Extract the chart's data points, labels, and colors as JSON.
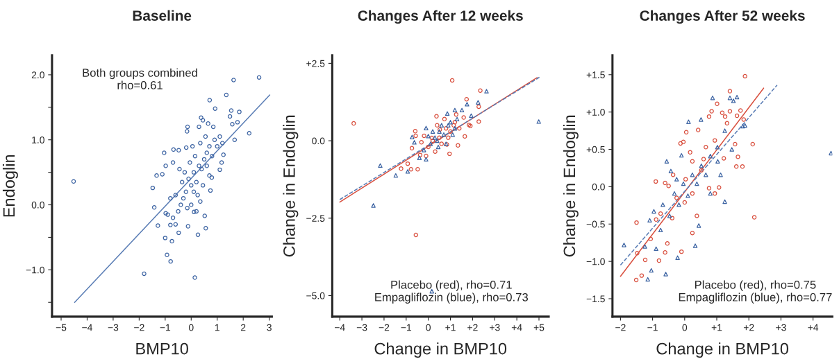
{
  "chart_data": [
    {
      "type": "scatter",
      "title": "Baseline",
      "xlabel": "BMP10",
      "ylabel": "Endoglin",
      "annotations": [
        "Both groups combined",
        "rho=0.61"
      ],
      "xlim": [
        -5.35,
        3.1
      ],
      "ylim": [
        -1.72,
        2.3
      ],
      "xticks": [
        {
          "value": -5,
          "label": "−5"
        },
        {
          "value": -4,
          "label": "−4"
        },
        {
          "value": -3,
          "label": "−3"
        },
        {
          "value": -2,
          "label": "−2"
        },
        {
          "value": -1,
          "label": "−1"
        },
        0,
        1,
        2,
        3
      ],
      "yticks": [
        {
          "value": -1.5,
          "label": null
        },
        {
          "value": -1.0,
          "label": "−1.0"
        },
        {
          "value": -0.5,
          "label": null
        },
        {
          "value": 0.0,
          "label": "0.0"
        },
        {
          "value": 0.5,
          "label": null
        },
        {
          "value": 1.0,
          "label": "1.0"
        },
        {
          "value": 1.5,
          "label": null
        },
        {
          "value": 2.0,
          "label": "2.0"
        }
      ],
      "grid": false,
      "legend": false,
      "series": [
        {
          "type": "scatter",
          "marker": "circle",
          "color": "#3d64a3",
          "x": [
            -4.52,
            2.61,
            1.63,
            1.35,
            0.71,
            0.92,
            -1.81,
            0.14,
            -0.79,
            -0.93,
            -0.74,
            -1.0,
            0.26,
            0.56,
            0.52,
            -1.28,
            -1.42,
            -1.48,
            -1.33,
            -1.04,
            2.23,
            1.67,
            1.85,
            1.54,
            1.78,
            1.58,
            1.49,
            0.38,
            -0.14,
            -0.16,
            -0.19,
            -0.68,
            -0.48,
            1.24,
            1.17,
            1.1,
            0.74,
            0.79,
            -0.98,
            -0.8,
            -0.48,
            -0.12,
            0.11,
            -0.7,
            -1.11,
            -0.98,
            0,
            0.1,
            -0.2,
            0.3,
            -0.3,
            0.2,
            0.4,
            -0.1,
            0.5,
            -0.4,
            0.6,
            -0.5,
            0.7,
            0.8,
            -0.6,
            0.0,
            0.15,
            0.35,
            -0.25,
            0.45,
            0.55,
            -0.35,
            0.25,
            -0.15,
            0.05,
            0.9,
            1.0,
            1.1,
            -0.7,
            -0.8,
            0.3,
            0.45,
            0.65,
            0.85,
            -0.05,
            0.7,
            -0.45,
            0.2,
            -0.6,
            0.35,
            -0.9,
            1.2,
            0.6,
            0.1
          ],
          "values": [
            0.36,
            1.96,
            1.92,
            1.69,
            1.61,
            1.48,
            -1.06,
            -1.12,
            -0.87,
            -0.77,
            -0.56,
            -0.51,
            -0.46,
            -0.36,
            -0.17,
            -0.32,
            -0.04,
            0.26,
            0.45,
            0.8,
            1.1,
            1.0,
            1.43,
            1.45,
            1.27,
            1.24,
            1.36,
            1.34,
            1.2,
            1.13,
            0.88,
            0.85,
            0.84,
            0.77,
            0.65,
            0.54,
            0.22,
            0.42,
            -0.13,
            -0.31,
            -0.43,
            -0.33,
            -0.11,
            0.65,
            0.47,
            0.6,
            0.3,
            0.5,
            0.2,
            0.6,
            0.1,
            0.35,
            0.55,
            0.4,
            0.7,
            0.0,
            0.8,
            -0.1,
            0.9,
            0.75,
            0.15,
            0.0,
            0.75,
            0.95,
            0.5,
            0.3,
            1.05,
            0.35,
            0.15,
            -0.05,
            0.9,
            1.0,
            0.9,
            1.05,
            -0.2,
            0.1,
            1.2,
            1.3,
            1.25,
            1.2,
            0.65,
            0.45,
            0.55,
            -0.1,
            -0.3,
            0.05,
            -0.15,
            0.95,
            0.6,
            0.2
          ]
        },
        {
          "type": "line",
          "line_style": "solid",
          "color": "#5a7db5",
          "x": [
            -4.48,
            3.02
          ],
          "values": [
            -1.5,
            1.69
          ]
        }
      ]
    },
    {
      "type": "scatter",
      "title": "Changes After 12 weeks",
      "xlabel": "Change in BMP10",
      "ylabel": "Change in Endoglin",
      "annotations": [
        "Placebo (red), rho=0.71",
        "Empagliflozin (blue), rho=0.73"
      ],
      "xlim": [
        -4.34,
        5.44
      ],
      "ylim": [
        -5.68,
        2.76
      ],
      "xticks": [
        {
          "value": -4,
          "label": "−4"
        },
        {
          "value": -3,
          "label": "−3"
        },
        {
          "value": -2,
          "label": "−2"
        },
        {
          "value": -1,
          "label": "−1"
        },
        0,
        {
          "value": 1,
          "label": "+1"
        },
        {
          "value": 2,
          "label": "+2"
        },
        {
          "value": 3,
          "label": "+3"
        },
        {
          "value": 4,
          "label": "+4"
        },
        {
          "value": 5,
          "label": "+5"
        }
      ],
      "yticks": [
        {
          "value": -5.0,
          "label": "−5.0"
        },
        {
          "value": -2.5,
          "label": "−2.5"
        },
        {
          "value": 0.0,
          "label": "0.0"
        },
        {
          "value": 2.5,
          "label": "+2.5"
        }
      ],
      "grid": false,
      "legend": false,
      "series": [
        {
          "type": "scatter",
          "marker": "circle",
          "color": "#d9503f",
          "x": [
            -3.37,
            1.08,
            2.35,
            1.73,
            2.28,
            2.28,
            -0.56,
            0.37,
            -0.59,
            -0.57,
            -1.23,
            -0.93,
            -0.78,
            -0.48,
            -0.74,
            0.96,
            1.34,
            1.65,
            1.84,
            1.9,
            1.6,
            -0.19,
            -0.31,
            0.73,
            1.15,
            0.52,
            0.84,
            -0.1,
            -0.37,
            1.26,
            0.16,
            0.31,
            0.5,
            0.8,
            1.0,
            0.2,
            0.6,
            1.2,
            0.0,
            0.4,
            0.9,
            1.4
          ],
          "values": [
            0.56,
            1.95,
            1.62,
            1.34,
            1.1,
            0.62,
            -3.04,
            0.79,
            0.31,
            0.16,
            -0.9,
            -0.74,
            -0.92,
            -0.92,
            -0.24,
            -0.42,
            -0.15,
            0.14,
            0.51,
            0.48,
            0.75,
            0.16,
            -0.05,
            0.7,
            0.5,
            0.36,
            -0.12,
            -0.49,
            -0.46,
            0.85,
            0.09,
            -0.35,
            0.1,
            0.4,
            0.3,
            0.0,
            -0.1,
            0.6,
            -0.2,
            0.5,
            0.1,
            0.4
          ]
        },
        {
          "type": "scatter",
          "marker": "triangle",
          "color": "#3d64a3",
          "x": [
            -2.17,
            -1.47,
            -2.48,
            4.99,
            2.63,
            2.25,
            1.75,
            1.94,
            0.16,
            -0.93,
            -0.73,
            -0.63,
            -0.1,
            1.2,
            1.52,
            0.86,
            0.3,
            0.5,
            0.7,
            0.9,
            0.1,
            0.4,
            0.6,
            1.0,
            1.2,
            0.2,
            0.8,
            1.1,
            -0.2,
            0.0,
            1.3,
            0.45,
            -0.4,
            -0.1
          ],
          "values": [
            -0.8,
            -1.12,
            -2.09,
            0.62,
            1.6,
            1.24,
            1.18,
            0.81,
            -4.86,
            -0.99,
            0.12,
            -0.05,
            0.41,
            0.99,
            0.99,
            0.88,
            0.1,
            0.3,
            0.2,
            0.5,
            -0.1,
            0.0,
            0.5,
            0.6,
            0.4,
            0.3,
            -0.1,
            0.2,
            -0.3,
            0.15,
            0.7,
            -0.2,
            -0.55,
            -0.6
          ]
        },
        {
          "type": "line",
          "line_style": "solid",
          "color": "#d9503f",
          "x": [
            -4.0,
            4.92
          ],
          "values": [
            -1.98,
            2.04
          ]
        },
        {
          "type": "line",
          "line_style": "dashed",
          "color": "#5a7db5",
          "x": [
            -4.0,
            5.02
          ],
          "values": [
            -1.9,
            2.05
          ]
        }
      ]
    },
    {
      "type": "scatter",
      "title": "Changes After 52 weeks",
      "xlabel": "Change in BMP10",
      "ylabel": "Change in Endoglin",
      "annotations": [
        "Placebo (red), rho=0.75",
        "Empagliflozin (blue), rho=0.77"
      ],
      "xlim": [
        -2.25,
        4.6
      ],
      "ylim": [
        -1.74,
        1.76
      ],
      "xticks": [
        {
          "value": -2,
          "label": "−2"
        },
        {
          "value": -1,
          "label": "−1"
        },
        0,
        {
          "value": 1,
          "label": "+1"
        },
        {
          "value": 2,
          "label": "+2"
        },
        {
          "value": 3,
          "label": "+3"
        },
        {
          "value": 4,
          "label": "+4"
        }
      ],
      "yticks": [
        {
          "value": -1.5,
          "label": "−1.5"
        },
        {
          "value": -1.0,
          "label": "−1.0"
        },
        {
          "value": -0.5,
          "label": "−0.5"
        },
        {
          "value": 0.0,
          "label": "0.0"
        },
        {
          "value": 0.5,
          "label": "+0.5"
        },
        {
          "value": 1.0,
          "label": "+1.0"
        },
        {
          "value": 1.5,
          "label": "+1.5"
        }
      ],
      "grid": false,
      "legend": false,
      "series": [
        {
          "type": "scatter",
          "marker": "circle",
          "color": "#d9503f",
          "x": [
            1.88,
            1.41,
            1.01,
            0.84,
            1.74,
            1.63,
            1.17,
            1.26,
            0.76,
            1.41,
            1.84,
            1.32,
            2.12,
            1.57,
            1.66,
            1.22,
            1.61,
            1.8,
            2.17,
            1.07,
            0.94,
            0.76,
            0.05,
            -0.13,
            -0.04,
            0.42,
            -0.9,
            -1.5,
            -1.48,
            -1.51,
            -1.34,
            -1.23,
            -0.8,
            -0.61,
            -0.1,
            0.24,
            -0.89,
            -0.61,
            -0.5,
            -0.39,
            0.0,
            0.24,
            0.52,
            0.66,
            0.24,
            -0.25,
            -0.75,
            -1.06,
            -0.54,
            0.38,
            0.17,
            0.94,
            -0.36,
            0.03,
            0.59
          ],
          "values": [
            1.48,
            1.28,
            1.11,
            1.01,
            1.02,
            0.95,
            0.99,
            0.94,
            0.94,
            1.01,
            0.9,
            0.85,
            0.57,
            0.57,
            0.4,
            0.38,
            0.27,
            0.27,
            -0.41,
            -0.01,
            -0.09,
            -0.02,
            0.73,
            0.58,
            0.6,
            0.76,
            0.07,
            -0.48,
            -0.89,
            -1.25,
            -1.19,
            -0.98,
            -0.99,
            -0.88,
            -0.87,
            -0.62,
            -0.44,
            0.05,
            0.01,
            -0.42,
            -0.21,
            -0.09,
            0.22,
            0.53,
            0.34,
            -0.15,
            -0.36,
            -0.7,
            -0.76,
            -0.39,
            0.46,
            0.62,
            0.16,
            0.1,
            0.37
          ]
        },
        {
          "type": "scatter",
          "marker": "triangle",
          "color": "#3d64a3",
          "x": [
            4.56,
            -1.89,
            -1.15,
            -1.04,
            -0.59,
            0.87,
            1.41,
            1.63,
            1.52,
            0.12,
            0.51,
            1.25,
            1.81,
            1.88,
            1.47,
            1.03,
            1.12,
            1.25,
            0.33,
            0.44,
            -0.22,
            -0.56,
            -0.43,
            -0.1,
            -1.24,
            -1.09,
            -0.96,
            -0.68,
            -0.32,
            -0.04,
            0.24,
            0.52,
            0.8,
            1.02,
            -0.18,
            0.1,
            0.38,
            -0.47,
            -0.75,
            0.66,
            -0.25,
            -0.89,
            0.8
          ],
          "values": [
            0.45,
            -0.78,
            -1.24,
            -1.12,
            -1.17,
            1.19,
            1.19,
            1.2,
            1.15,
            0.87,
            0.9,
            0.75,
            0.81,
            0.82,
            0.5,
            0.34,
            0.16,
            -0.2,
            -0.79,
            -0.52,
            -0.95,
            0.34,
            0.21,
            0.42,
            -0.8,
            -0.45,
            -0.33,
            -0.24,
            -0.09,
            0.04,
            0.16,
            0.28,
            0.41,
            0.53,
            -0.24,
            -0.12,
            0.04,
            -0.39,
            -0.58,
            0.16,
            0.1,
            -0.83,
            -0.09
          ]
        },
        {
          "type": "line",
          "line_style": "solid",
          "color": "#d9503f",
          "x": [
            -2.0,
            2.46
          ],
          "values": [
            -1.2,
            1.32
          ]
        },
        {
          "type": "line",
          "line_style": "dashed",
          "color": "#5a7db5",
          "x": [
            -2.0,
            2.88
          ],
          "values": [
            -1.05,
            1.36
          ]
        }
      ]
    }
  ]
}
